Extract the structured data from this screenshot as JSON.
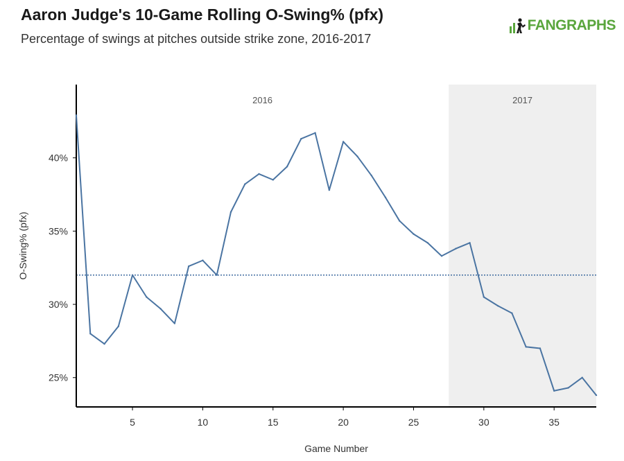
{
  "header": {
    "title": "Aaron Judge's 10-Game Rolling O-Swing% (pfx)",
    "subtitle": "Percentage of swings at pitches outside strike zone, 2016-2017"
  },
  "brand": {
    "logo_text": "FANGRAPHS",
    "icon": "fangraphs-logo-icon",
    "color": "#5aa63d"
  },
  "chart_data": {
    "type": "line",
    "title": "Aaron Judge's 10-Game Rolling O-Swing% (pfx)",
    "xlabel": "Game Number",
    "ylabel": "O-Swing% (pfx)",
    "xlim": [
      1,
      38
    ],
    "ylim": [
      23,
      45
    ],
    "xticks": [
      5,
      10,
      15,
      20,
      25,
      30,
      35
    ],
    "xtick_labels": [
      "5",
      "10",
      "15",
      "20",
      "25",
      "30",
      "35"
    ],
    "yticks": [
      25,
      30,
      35,
      40
    ],
    "ytick_labels": [
      "25%",
      "30%",
      "35%",
      "40%"
    ],
    "reference_line": {
      "value": 32.0,
      "style": "dotted",
      "color": "#2f5f98"
    },
    "season_regions": [
      {
        "label": "2016",
        "start": 1,
        "end": 27.5,
        "shaded": false
      },
      {
        "label": "2017",
        "start": 27.5,
        "end": 38,
        "shaded": true,
        "color": "#efefef"
      }
    ],
    "series": [
      {
        "name": "O-Swing% (pfx)",
        "color": "#4a74a2",
        "x": [
          1,
          2,
          3,
          4,
          5,
          6,
          7,
          8,
          9,
          10,
          11,
          12,
          13,
          14,
          15,
          16,
          17,
          18,
          19,
          20,
          21,
          22,
          23,
          24,
          25,
          26,
          27,
          28,
          29,
          30,
          31,
          32,
          33,
          34,
          35,
          36,
          37,
          38
        ],
        "values": [
          42.9,
          28.0,
          27.3,
          28.5,
          32.0,
          30.5,
          29.7,
          28.7,
          32.6,
          33.0,
          32.0,
          36.3,
          38.2,
          38.9,
          38.5,
          39.4,
          41.3,
          41.7,
          37.8,
          41.1,
          40.1,
          38.8,
          37.3,
          35.7,
          34.8,
          34.2,
          33.3,
          33.8,
          34.2,
          30.5,
          29.9,
          29.4,
          27.1,
          27.0,
          24.1,
          24.3,
          25.0,
          23.8
        ]
      }
    ]
  }
}
